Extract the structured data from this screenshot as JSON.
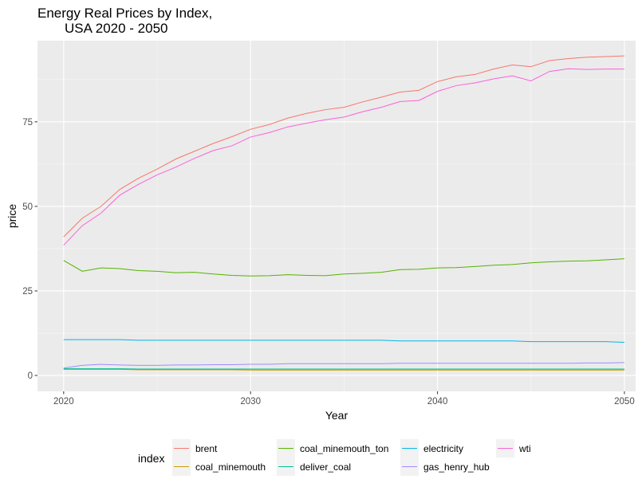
{
  "chart_data": {
    "type": "line",
    "title": [
      "Energy Real Prices by Index,",
      "USA 2020 - 2050"
    ],
    "xlabel": "Year",
    "ylabel": "price",
    "xlim": [
      2018.6,
      2050.6
    ],
    "ylim": [
      -4.7,
      99
    ],
    "x_ticks": [
      2020,
      2030,
      2040,
      2050
    ],
    "x_tick_labels": [
      "2020",
      "2030",
      "2040",
      "2050"
    ],
    "y_ticks": [
      0,
      25,
      50,
      75
    ],
    "y_tick_labels": [
      "0",
      "25",
      "50",
      "75"
    ],
    "x_minor_ticks": [
      2025,
      2035,
      2045
    ],
    "y_minor_ticks": [
      12.5,
      37.5,
      62.5,
      87.5
    ],
    "grid": true,
    "legend_title": "index",
    "legend_position": "bottom",
    "x": [
      2020,
      2021,
      2022,
      2023,
      2024,
      2025,
      2026,
      2027,
      2028,
      2029,
      2030,
      2031,
      2032,
      2033,
      2034,
      2035,
      2036,
      2037,
      2038,
      2039,
      2040,
      2041,
      2042,
      2043,
      2044,
      2045,
      2046,
      2047,
      2048,
      2049,
      2050
    ],
    "series": [
      {
        "name": "brent",
        "color": "#F8766D",
        "values": [
          41.0,
          46.5,
          50.0,
          55.0,
          58.3,
          61.0,
          64.0,
          66.3,
          68.6,
          70.6,
          72.8,
          74.2,
          76.1,
          77.5,
          78.6,
          79.3,
          80.9,
          82.3,
          83.8,
          84.3,
          86.9,
          88.3,
          89.0,
          90.6,
          91.8,
          91.3,
          93.1,
          93.7,
          94.1,
          94.3,
          94.5
        ]
      },
      {
        "name": "coal_minemouth",
        "color": "#C49A00",
        "values": [
          1.8,
          1.8,
          1.8,
          1.8,
          1.7,
          1.7,
          1.7,
          1.7,
          1.7,
          1.7,
          1.6,
          1.6,
          1.6,
          1.6,
          1.6,
          1.6,
          1.6,
          1.6,
          1.6,
          1.6,
          1.6,
          1.6,
          1.6,
          1.6,
          1.6,
          1.6,
          1.6,
          1.6,
          1.6,
          1.6,
          1.6
        ]
      },
      {
        "name": "coal_minemouth_ton",
        "color": "#53B400",
        "values": [
          34.0,
          30.8,
          31.8,
          31.6,
          31.0,
          30.8,
          30.4,
          30.5,
          30.0,
          29.6,
          29.4,
          29.5,
          29.8,
          29.6,
          29.5,
          30.0,
          30.2,
          30.5,
          31.3,
          31.4,
          31.8,
          31.9,
          32.2,
          32.6,
          32.8,
          33.3,
          33.6,
          33.8,
          33.9,
          34.2,
          34.5
        ]
      },
      {
        "name": "deliver_coal",
        "color": "#00C094",
        "values": [
          2.0,
          2.0,
          2.0,
          2.0,
          1.9,
          1.9,
          1.9,
          1.9,
          1.9,
          1.9,
          1.9,
          1.9,
          1.9,
          1.9,
          1.9,
          1.9,
          1.9,
          1.9,
          1.9,
          1.9,
          1.9,
          1.9,
          1.9,
          1.9,
          1.9,
          1.9,
          1.9,
          1.9,
          1.9,
          1.9,
          1.9
        ]
      },
      {
        "name": "electricity",
        "color": "#00B6EB",
        "values": [
          10.6,
          10.6,
          10.6,
          10.6,
          10.4,
          10.4,
          10.4,
          10.4,
          10.4,
          10.4,
          10.4,
          10.4,
          10.4,
          10.4,
          10.4,
          10.4,
          10.4,
          10.4,
          10.2,
          10.2,
          10.2,
          10.2,
          10.2,
          10.2,
          10.2,
          10.0,
          10.0,
          10.0,
          10.0,
          10.0,
          9.8
        ]
      },
      {
        "name": "gas_henry_hub",
        "color": "#A58AFF",
        "values": [
          2.2,
          3.0,
          3.3,
          3.1,
          3.0,
          3.0,
          3.1,
          3.1,
          3.2,
          3.2,
          3.3,
          3.3,
          3.5,
          3.5,
          3.5,
          3.5,
          3.5,
          3.5,
          3.6,
          3.6,
          3.6,
          3.6,
          3.6,
          3.6,
          3.6,
          3.6,
          3.6,
          3.6,
          3.7,
          3.7,
          3.8
        ]
      },
      {
        "name": "wti",
        "color": "#FB61D7",
        "values": [
          38.5,
          44.3,
          48.0,
          53.3,
          56.5,
          59.3,
          61.6,
          64.2,
          66.5,
          67.9,
          70.5,
          71.8,
          73.5,
          74.6,
          75.6,
          76.4,
          78.0,
          79.3,
          81.0,
          81.3,
          84.0,
          85.7,
          86.5,
          87.7,
          88.6,
          87.1,
          89.9,
          90.7,
          90.5,
          90.6,
          90.6
        ]
      }
    ]
  }
}
